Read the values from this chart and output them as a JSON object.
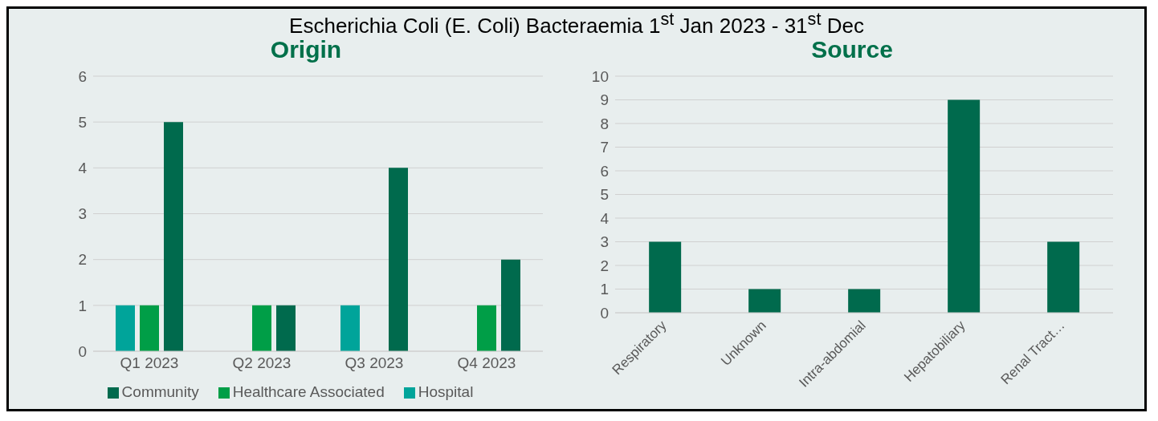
{
  "chart_data": [
    {
      "type": "other",
      "title": "Escherichia Coli (E. Coli) Bacteraemia 1$^{st}$ Jan 2023 - 31$^{st}$ Dec"
    },
    {
      "type": "bar",
      "title": "Origin",
      "categories": [
        "Q1 2023",
        "Q2 2023",
        "Q3 2023",
        "Q4 2023"
      ],
      "series": [
        {
          "name": "Hospital",
          "color": "#00a49a",
          "values": [
            1,
            0,
            1,
            0
          ]
        },
        {
          "name": "Healthcare Associated",
          "color": "#009e47",
          "values": [
            1,
            1,
            0,
            1
          ]
        },
        {
          "name": "Community",
          "color": "#006a4d",
          "values": [
            5,
            1,
            4,
            2
          ]
        }
      ],
      "ylim": [
        0,
        6
      ],
      "yticks": [
        0,
        1,
        2,
        3,
        4,
        5,
        6
      ],
      "grid": "y",
      "legend": "bottom"
    },
    {
      "type": "bar",
      "title": "Source",
      "categories": [
        "Respiratory",
        "Unknown",
        "Intra-abdomial",
        "Hepatobiliary",
        "Renal Tract…"
      ],
      "values": [
        3,
        1,
        1,
        9,
        3
      ],
      "color": "#006a4d",
      "ylim": [
        0,
        10
      ],
      "yticks": [
        0,
        1,
        2,
        3,
        4,
        5,
        6,
        7,
        8,
        9,
        10
      ],
      "grid": "y"
    }
  ]
}
